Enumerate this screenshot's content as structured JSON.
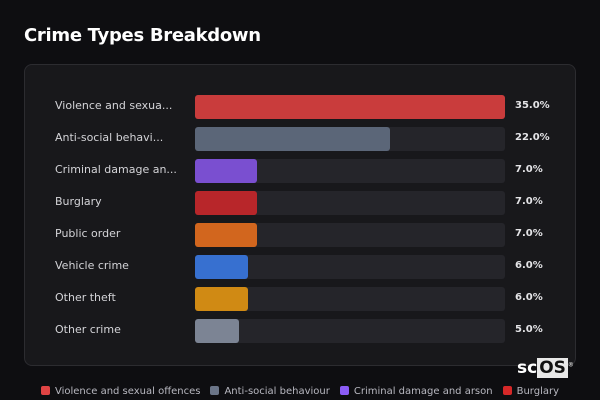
{
  "title": "Crime Types Breakdown",
  "logo": {
    "prefix": "sc",
    "boxed": "OS",
    "mark": "®"
  },
  "chart_data": {
    "type": "bar",
    "orientation": "horizontal",
    "title": "Crime Types Breakdown",
    "max": 35,
    "categories": [
      "Violence and sexua...",
      "Anti-social behavi...",
      "Criminal damage an...",
      "Burglary",
      "Public order",
      "Vehicle crime",
      "Other theft",
      "Other crime"
    ],
    "values": [
      35.0,
      22.0,
      7.0,
      7.0,
      7.0,
      6.0,
      6.0,
      5.0
    ],
    "value_labels": [
      "35.0%",
      "22.0%",
      "7.0%",
      "7.0%",
      "7.0%",
      "6.0%",
      "6.0%",
      "5.0%"
    ],
    "colors": [
      "#c93c3c",
      "#5b6678",
      "#7a4fd0",
      "#b8262a",
      "#d2661e",
      "#3770d0",
      "#d08a14",
      "#7c8494"
    ],
    "legend": [
      {
        "label": "Violence and sexual offences",
        "color": "#e04444"
      },
      {
        "label": "Anti-social behaviour",
        "color": "#6b7588"
      },
      {
        "label": "Criminal damage and arson",
        "color": "#8b5cf6"
      },
      {
        "label": "Burglary",
        "color": "#d62828"
      }
    ]
  }
}
